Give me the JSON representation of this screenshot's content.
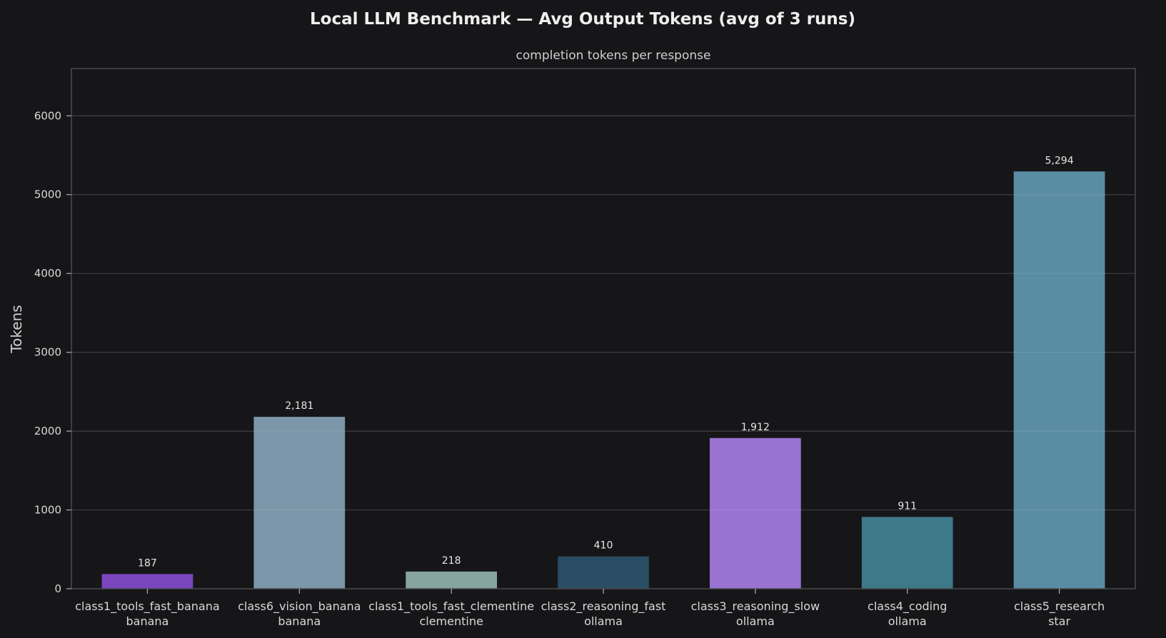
{
  "chart_data": {
    "type": "bar",
    "title": "Local LLM Benchmark — Avg Output Tokens  (avg of 3 runs)",
    "subtitle": "completion tokens per response",
    "xlabel": "",
    "ylabel": "Tokens",
    "ylim": [
      0,
      6600
    ],
    "yticks": [
      "0",
      "1000",
      "2000",
      "3000",
      "4000",
      "5000",
      "6000"
    ],
    "grid": true,
    "categories": [
      [
        "class1_tools_fast_banana",
        "banana"
      ],
      [
        "class6_vision_banana",
        "banana"
      ],
      [
        "class1_tools_fast_clementine",
        "clementine"
      ],
      [
        "class2_reasoning_fast",
        "ollama"
      ],
      [
        "class3_reasoning_slow",
        "ollama"
      ],
      [
        "class4_coding",
        "ollama"
      ],
      [
        "class5_research",
        "star"
      ]
    ],
    "values": [
      187,
      2181,
      218,
      410,
      1912,
      911,
      5294
    ],
    "value_labels": [
      "187",
      "2,181",
      "218",
      "410",
      "1,912",
      "911",
      "5,294"
    ],
    "colors": [
      "#7b46bd",
      "#7b97a9",
      "#86a69d",
      "#294d64",
      "#9a72d2",
      "#3e7989",
      "#5a8da4"
    ]
  },
  "colors": {
    "background": "#161618",
    "grid": "#2a2a2d",
    "axis": "#4a4a4e",
    "text": "#d8d8d8",
    "title": "#eeeeee"
  }
}
